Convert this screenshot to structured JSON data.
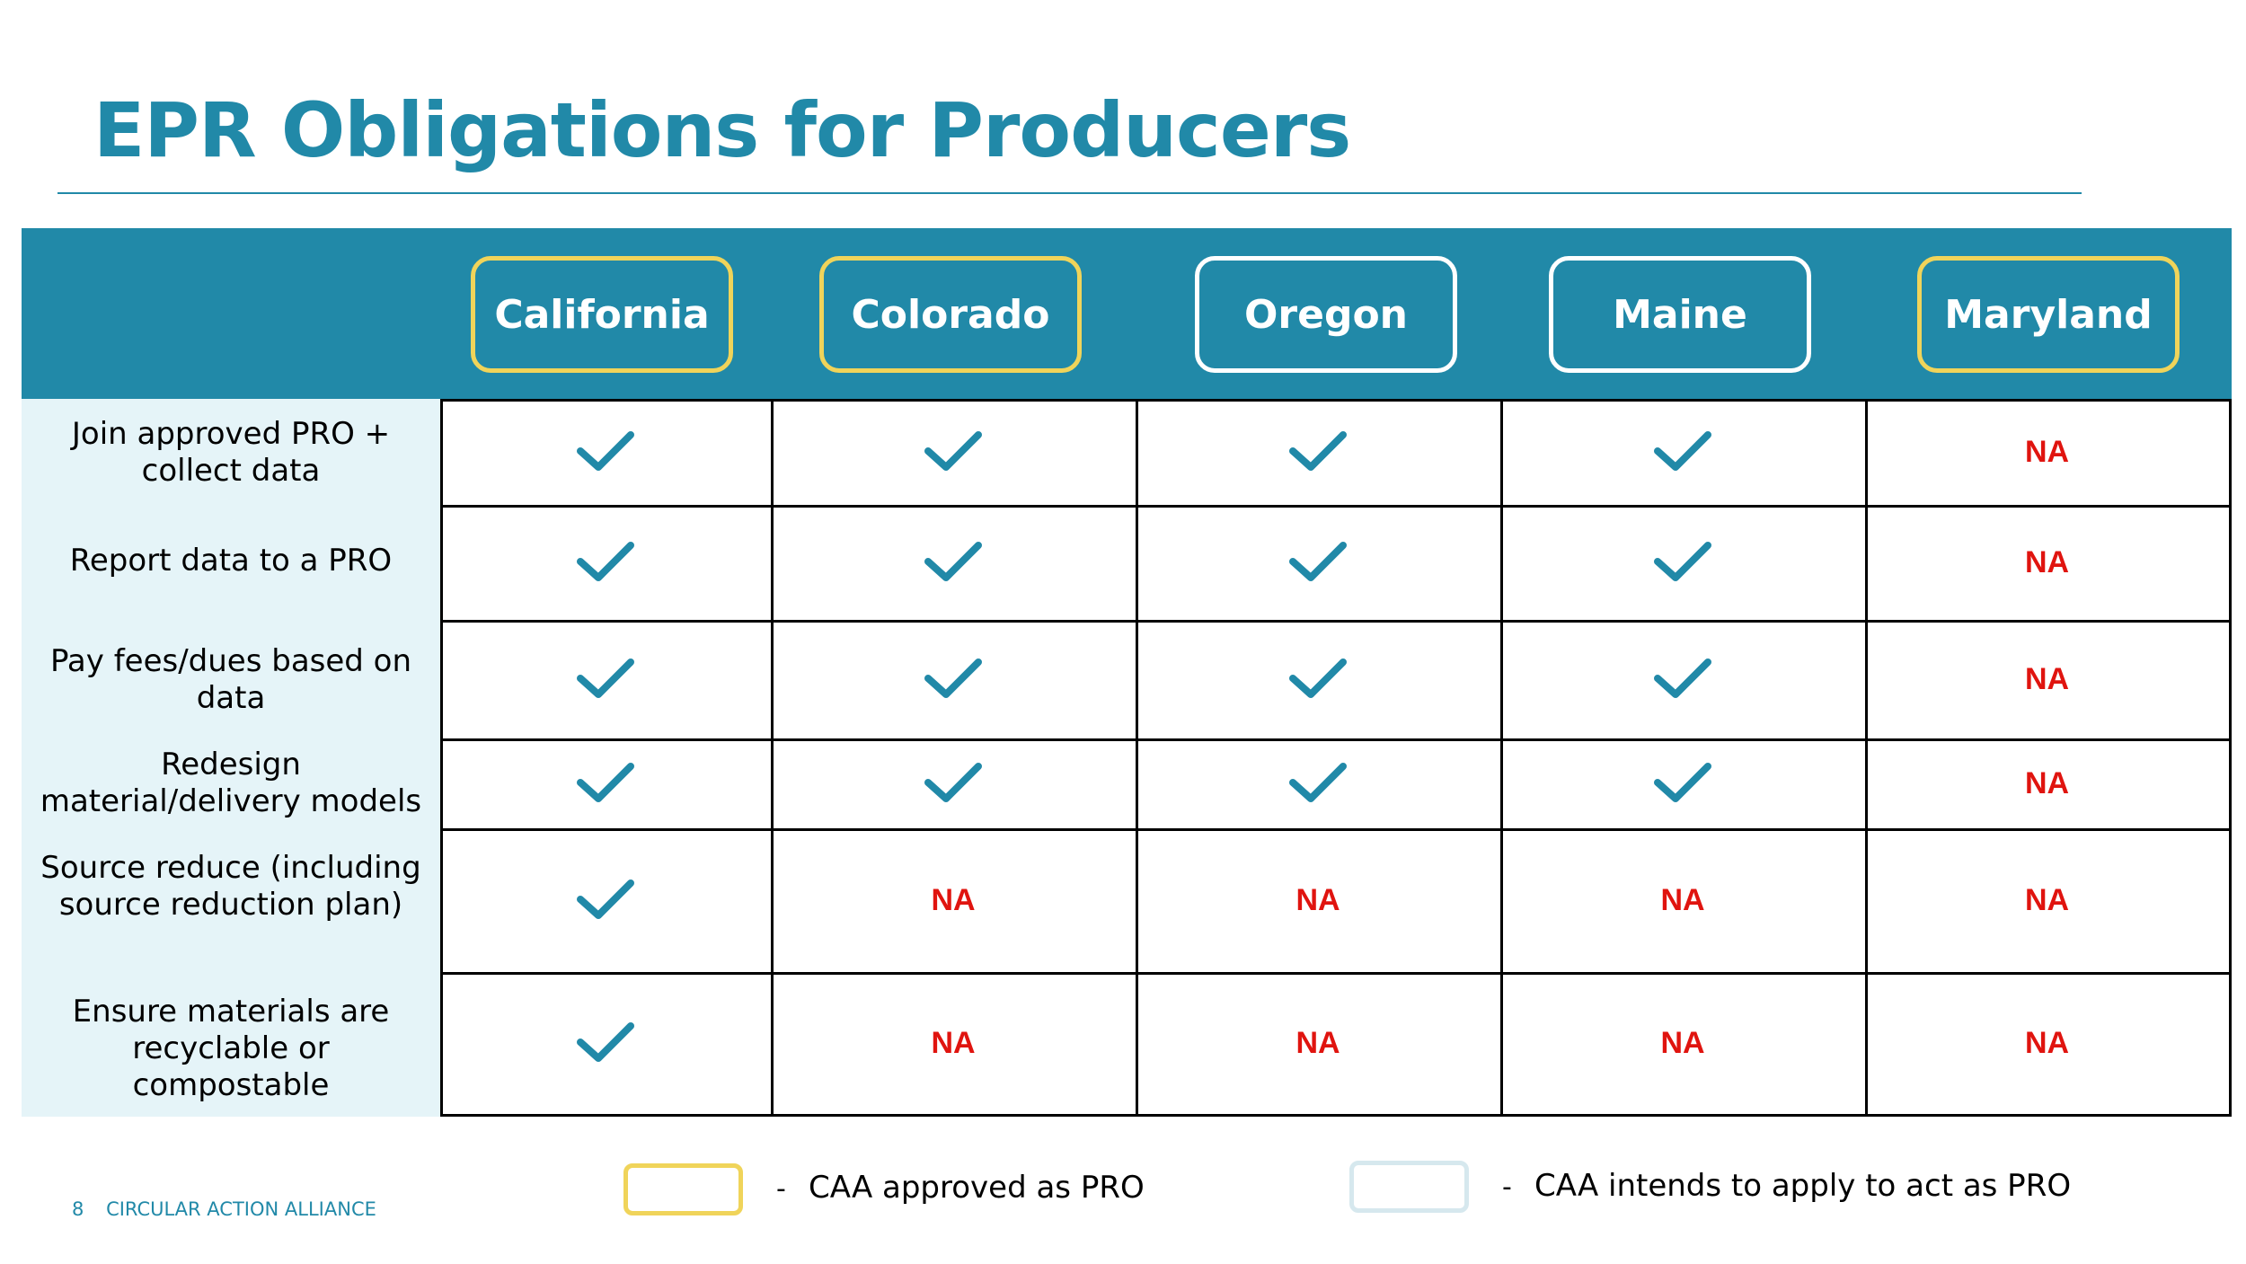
{
  "slide": {
    "title": "EPR Obligations for Producers"
  },
  "states": [
    {
      "name": "California",
      "status": "approved"
    },
    {
      "name": "Colorado",
      "status": "approved"
    },
    {
      "name": "Oregon",
      "status": "intends"
    },
    {
      "name": "Maine",
      "status": "intends"
    },
    {
      "name": "Maryland",
      "status": "approved"
    }
  ],
  "rows": [
    {
      "label": "Join approved PRO + collect data",
      "values": [
        "check",
        "check",
        "check",
        "check",
        "NA"
      ]
    },
    {
      "label": "Report data to a PRO",
      "values": [
        "check",
        "check",
        "check",
        "check",
        "NA"
      ]
    },
    {
      "label": "Pay fees/dues based on data",
      "values": [
        "check",
        "check",
        "check",
        "check",
        "NA"
      ]
    },
    {
      "label": "Redesign material/delivery models",
      "values": [
        "check",
        "check",
        "check",
        "check",
        "NA"
      ]
    },
    {
      "label": "Source reduce (including source reduction plan)",
      "values": [
        "check",
        "NA",
        "NA",
        "NA",
        "NA"
      ]
    },
    {
      "label": "Ensure materials are recyclable or compostable",
      "values": [
        "check",
        "NA",
        "NA",
        "NA",
        "NA"
      ]
    }
  ],
  "legend": {
    "dash": "-",
    "approved_text": "CAA approved as PRO",
    "intends_text": "CAA intends to apply to act as PRO"
  },
  "footer": {
    "page_number": "8",
    "organization": "CIRCULAR ACTION ALLIANCE"
  },
  "colors": {
    "brand_teal": "#2189a8",
    "approved_outline": "#f0d45a",
    "intends_outline": "#ffffff",
    "na_red": "#e0140f",
    "label_panel": "#e5f4f8"
  }
}
